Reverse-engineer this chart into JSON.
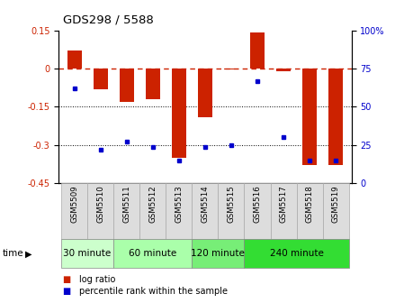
{
  "title": "GDS298 / 5588",
  "samples": [
    "GSM5509",
    "GSM5510",
    "GSM5511",
    "GSM5512",
    "GSM5513",
    "GSM5514",
    "GSM5515",
    "GSM5516",
    "GSM5517",
    "GSM5518",
    "GSM5519"
  ],
  "log_ratio": [
    0.07,
    -0.08,
    -0.13,
    -0.12,
    -0.35,
    -0.19,
    -0.005,
    0.14,
    -0.01,
    -0.38,
    -0.38
  ],
  "percentile": [
    62,
    22,
    27,
    24,
    15,
    24,
    25,
    67,
    30,
    15,
    15
  ],
  "groups": [
    {
      "label": "30 minute",
      "start": 0,
      "end": 1,
      "color": "#ccffcc"
    },
    {
      "label": "60 minute",
      "start": 2,
      "end": 4,
      "color": "#aaffaa"
    },
    {
      "label": "120 minute",
      "start": 5,
      "end": 6,
      "color": "#77ee77"
    },
    {
      "label": "240 minute",
      "start": 7,
      "end": 10,
      "color": "#33dd33"
    }
  ],
  "ylim_left": [
    -0.45,
    0.15
  ],
  "ylim_right": [
    0,
    100
  ],
  "yticks_left": [
    0.15,
    0.0,
    -0.15,
    -0.3,
    -0.45
  ],
  "yticklabels_left": [
    "0.15",
    "0",
    "-0.15",
    "-0.3",
    "-0.45"
  ],
  "yticks_right": [
    100,
    75,
    50,
    25,
    0
  ],
  "yticklabels_right": [
    "100%",
    "75",
    "50",
    "25",
    "0"
  ],
  "hlines": [
    -0.15,
    -0.3
  ],
  "bar_color": "#cc2200",
  "dot_color": "#0000cc",
  "dashed_line_color": "#cc2200",
  "tick_label_color_left": "#cc2200",
  "tick_label_color_right": "#0000cc",
  "label_panel_facecolor": "#dddddd",
  "label_panel_edgecolor": "#aaaaaa"
}
